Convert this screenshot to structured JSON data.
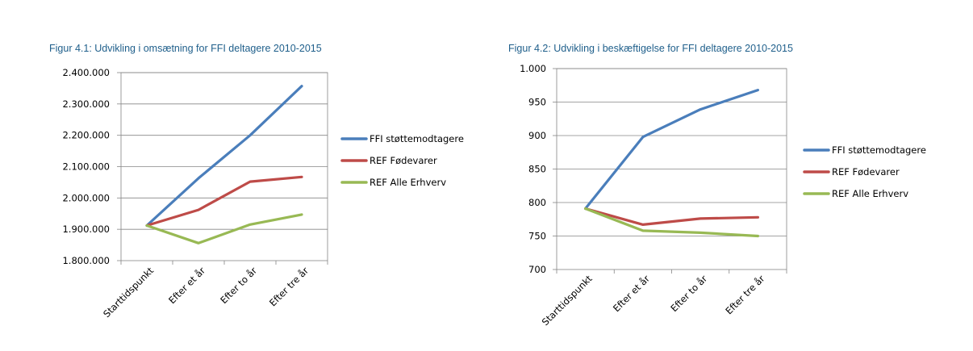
{
  "chart_data": [
    {
      "type": "line",
      "title": "Figur 4.1: Udvikling i omsætning for FFI deltagere 2010-2015",
      "xlabel": "",
      "ylabel": "",
      "categories": [
        "Starttidspunkt",
        "Efter et år",
        "Efter to år",
        "Efter tre år"
      ],
      "ylim": [
        1800000,
        2400000
      ],
      "yticks": [
        "1.800.000",
        "1.900.000",
        "2.000.000",
        "2.100.000",
        "2.200.000",
        "2.300.000",
        "2.400.000"
      ],
      "grid": true,
      "legend_position": "right",
      "series": [
        {
          "name": "FFI støttemodtagere",
          "color": "#4a7ebb",
          "values": [
            1912000,
            2063000,
            2200000,
            2357000
          ]
        },
        {
          "name": "REF Fødevarer",
          "color": "#be4b48",
          "values": [
            1912000,
            1962000,
            2052000,
            2067000
          ]
        },
        {
          "name": "REF Alle Erhverv",
          "color": "#98b954",
          "values": [
            1912000,
            1856000,
            1915000,
            1947000
          ]
        }
      ]
    },
    {
      "type": "line",
      "title": "Figur 4.2: Udvikling i beskæftigelse for FFI deltagere 2010-2015",
      "xlabel": "",
      "ylabel": "",
      "categories": [
        "Starttidspunkt",
        "Efter et år",
        "Efter to år",
        "Efter tre år"
      ],
      "ylim": [
        700,
        1000
      ],
      "yticks": [
        "700",
        "750",
        "800",
        "850",
        "900",
        "950",
        "1.000"
      ],
      "grid": true,
      "legend_position": "right",
      "series": [
        {
          "name": "FFI støttemodtagere",
          "color": "#4a7ebb",
          "values": [
            791,
            898,
            939,
            968
          ]
        },
        {
          "name": "REF Fødevarer",
          "color": "#be4b48",
          "values": [
            791,
            767,
            776,
            778
          ]
        },
        {
          "name": "REF Alle Erhverv",
          "color": "#98b954",
          "values": [
            791,
            758,
            755,
            750
          ]
        }
      ]
    }
  ]
}
